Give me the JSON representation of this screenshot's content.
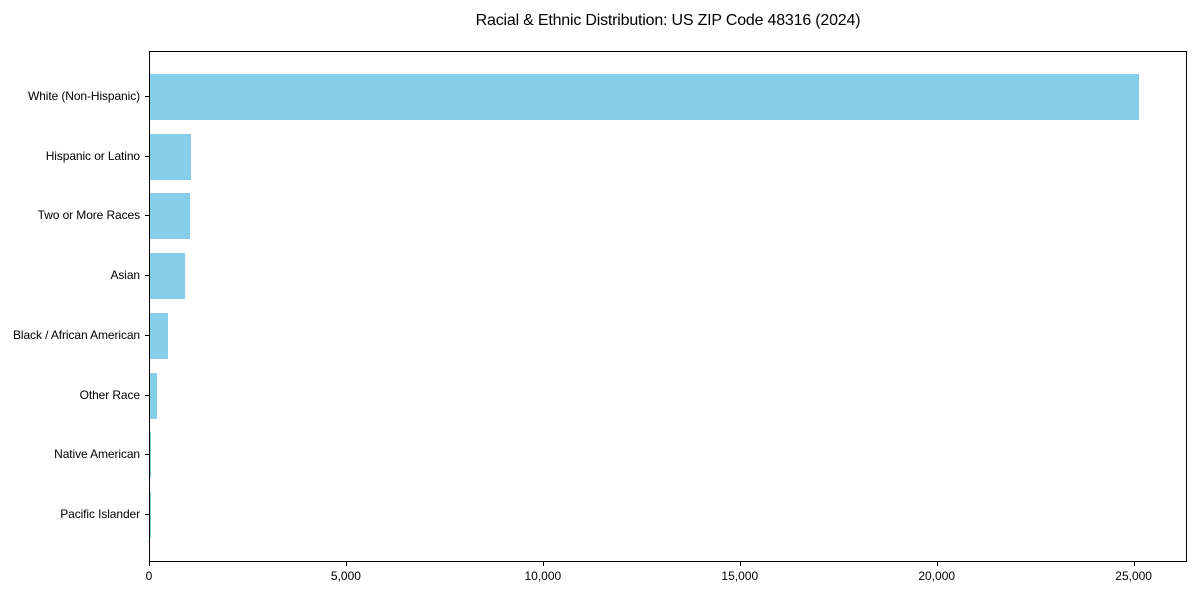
{
  "chart_data": {
    "type": "bar",
    "orientation": "horizontal",
    "title": "Racial & Ethnic Distribution: US ZIP Code 48316 (2024)",
    "categories": [
      "White (Non-Hispanic)",
      "Hispanic or Latino",
      "Two or More Races",
      "Asian",
      "Black / African American",
      "Other Race",
      "Native American",
      "Pacific Islander"
    ],
    "values": [
      25100,
      1040,
      1010,
      880,
      450,
      170,
      20,
      8
    ],
    "xlabel": "",
    "ylabel": "",
    "xlim": [
      0,
      26355
    ],
    "x_ticks": {
      "values": [
        0,
        5000,
        10000,
        15000,
        20000,
        25000
      ],
      "labels": [
        "0",
        "5,000",
        "10,000",
        "15,000",
        "20,000",
        "25,000"
      ]
    },
    "bar_color": "#87CEEB",
    "axis_color": "#000000",
    "text_color": "#000000",
    "grid": false,
    "legend": null
  }
}
